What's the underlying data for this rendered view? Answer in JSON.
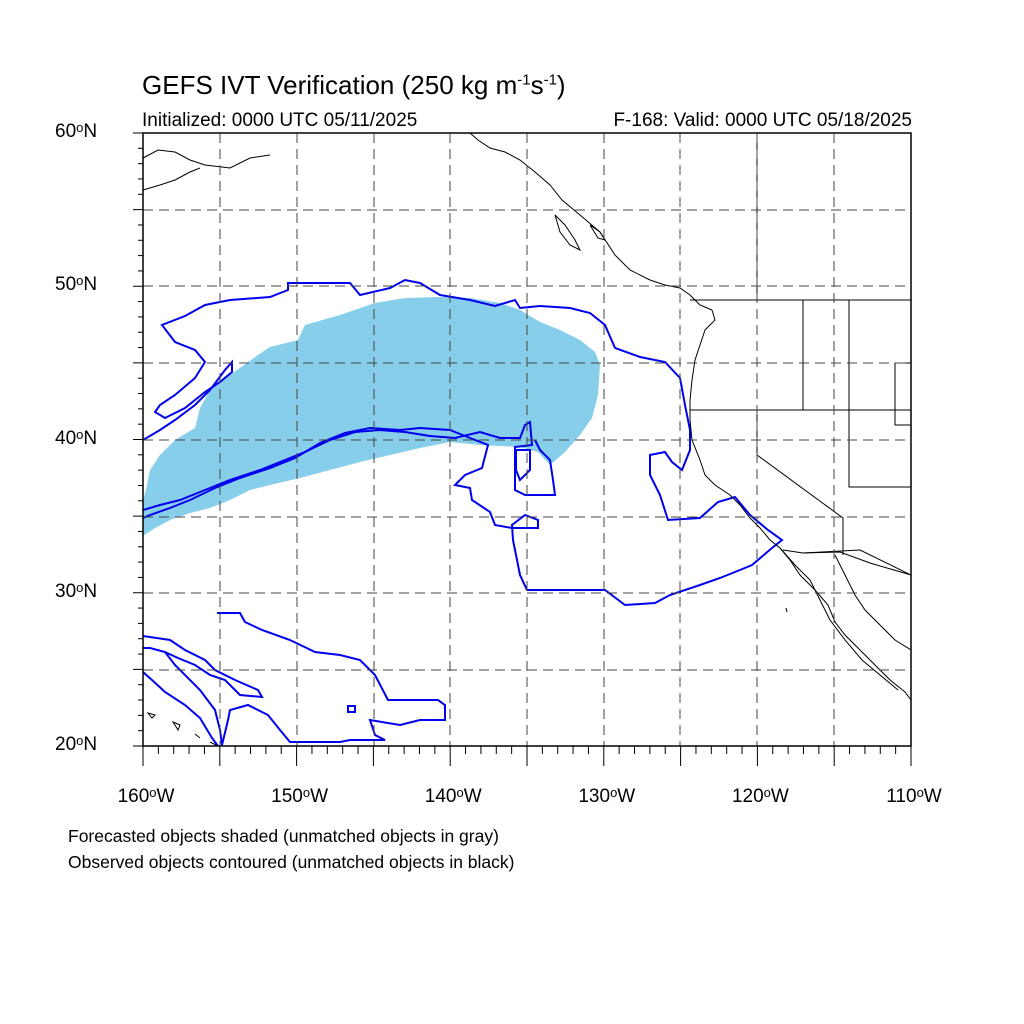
{
  "title": {
    "main": "GEFS IVT Verification (250 kg m",
    "sup1": "-1",
    "mid": "s",
    "sup2": "-1",
    "end": ")"
  },
  "subtitle": {
    "left": "Initialized: 0000 UTC 05/11/2025",
    "right": "F-168: Valid: 0000 UTC 05/18/2025"
  },
  "axes": {
    "lat_labels": [
      "60",
      "50",
      "40",
      "30",
      "20"
    ],
    "lat_suffix": "N",
    "lon_labels": [
      "160",
      "150",
      "140",
      "130",
      "120",
      "110"
    ],
    "lon_suffix": "W",
    "degree_symbol": "o",
    "lat_range": [
      20,
      60
    ],
    "lon_range": [
      -160,
      -110
    ],
    "grid": true
  },
  "captions": {
    "line1": "Forecasted objects shaded (unmatched objects in gray)",
    "line2": "Observed objects contoured (unmatched objects in black)"
  },
  "colors": {
    "forecast_fill": "#87ceeb",
    "observed_contour": "#0000ee",
    "coastline": "#000000",
    "grid": "#444444"
  }
}
